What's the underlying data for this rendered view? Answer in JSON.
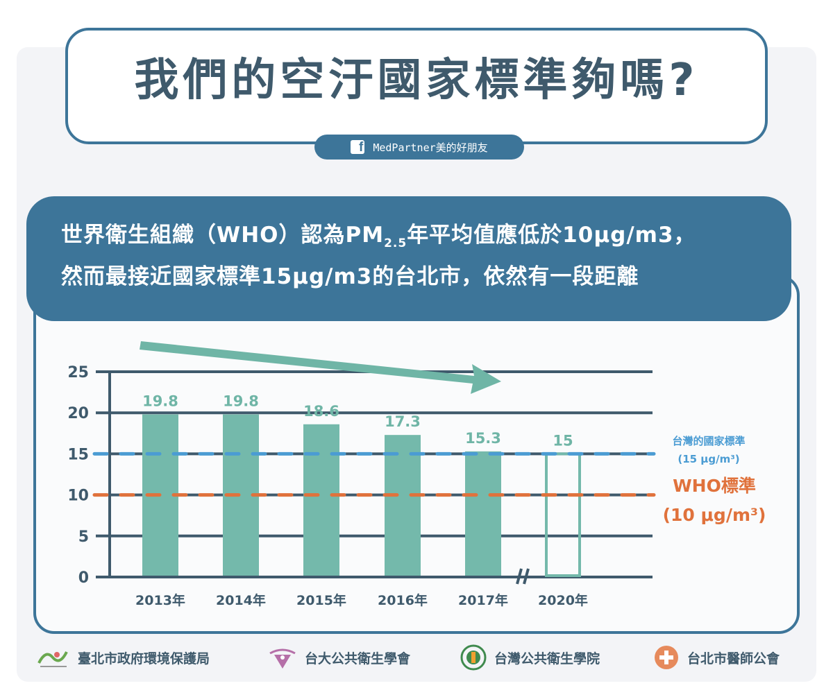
{
  "title": "我們的空汙國家標準夠嗎?",
  "facebook": {
    "page_name": "MedPartner美的好朋友"
  },
  "banner": {
    "line1_prefix": "世界衛生組織（WHO）認為PM",
    "line1_sub": "2.5",
    "line1_suffix": "年平均值應低於10μg/m3，",
    "line2": "然而最接近國家標準15μg/m3的台北市，依然有一段距離"
  },
  "chart_data": {
    "type": "bar",
    "categories": [
      "2013年",
      "2014年",
      "2015年",
      "2016年",
      "2017年",
      "2020年"
    ],
    "values": [
      19.8,
      19.8,
      18.6,
      17.3,
      15.3,
      15
    ],
    "value_labels": [
      "19.8",
      "19.8",
      "18.6",
      "17.3",
      "15.3",
      "15"
    ],
    "hollow_last": true,
    "axis_break_between": [
      "2017年",
      "2020年"
    ],
    "ylim": [
      0,
      25
    ],
    "yticks": [
      0,
      5,
      10,
      15,
      20,
      25
    ],
    "grid": true,
    "trend_arrow": "downward",
    "reference_lines": [
      {
        "value": 15,
        "label": "台灣的國家標準",
        "sublabel": "(15 μg/m³)",
        "color": "#4b9cd3"
      },
      {
        "value": 10,
        "label": "WHO標準",
        "sublabel": "(10 μg/m³)",
        "color": "#e0723c"
      }
    ],
    "colors": {
      "bar": "#74b9ab",
      "axis": "#3f5a6c",
      "arrow": "#6fb5a6"
    }
  },
  "footer": {
    "items": [
      {
        "label": "臺北市政府環境保護局",
        "icon": "taipei-logo-icon"
      },
      {
        "label": "台大公共衛生學會",
        "icon": "ntu-ph-society-logo-icon"
      },
      {
        "label": "台灣公共衛生學院",
        "icon": "taiwan-ph-college-logo-icon"
      },
      {
        "label": "台北市醫師公會",
        "icon": "taipei-medical-association-logo-icon"
      }
    ]
  }
}
